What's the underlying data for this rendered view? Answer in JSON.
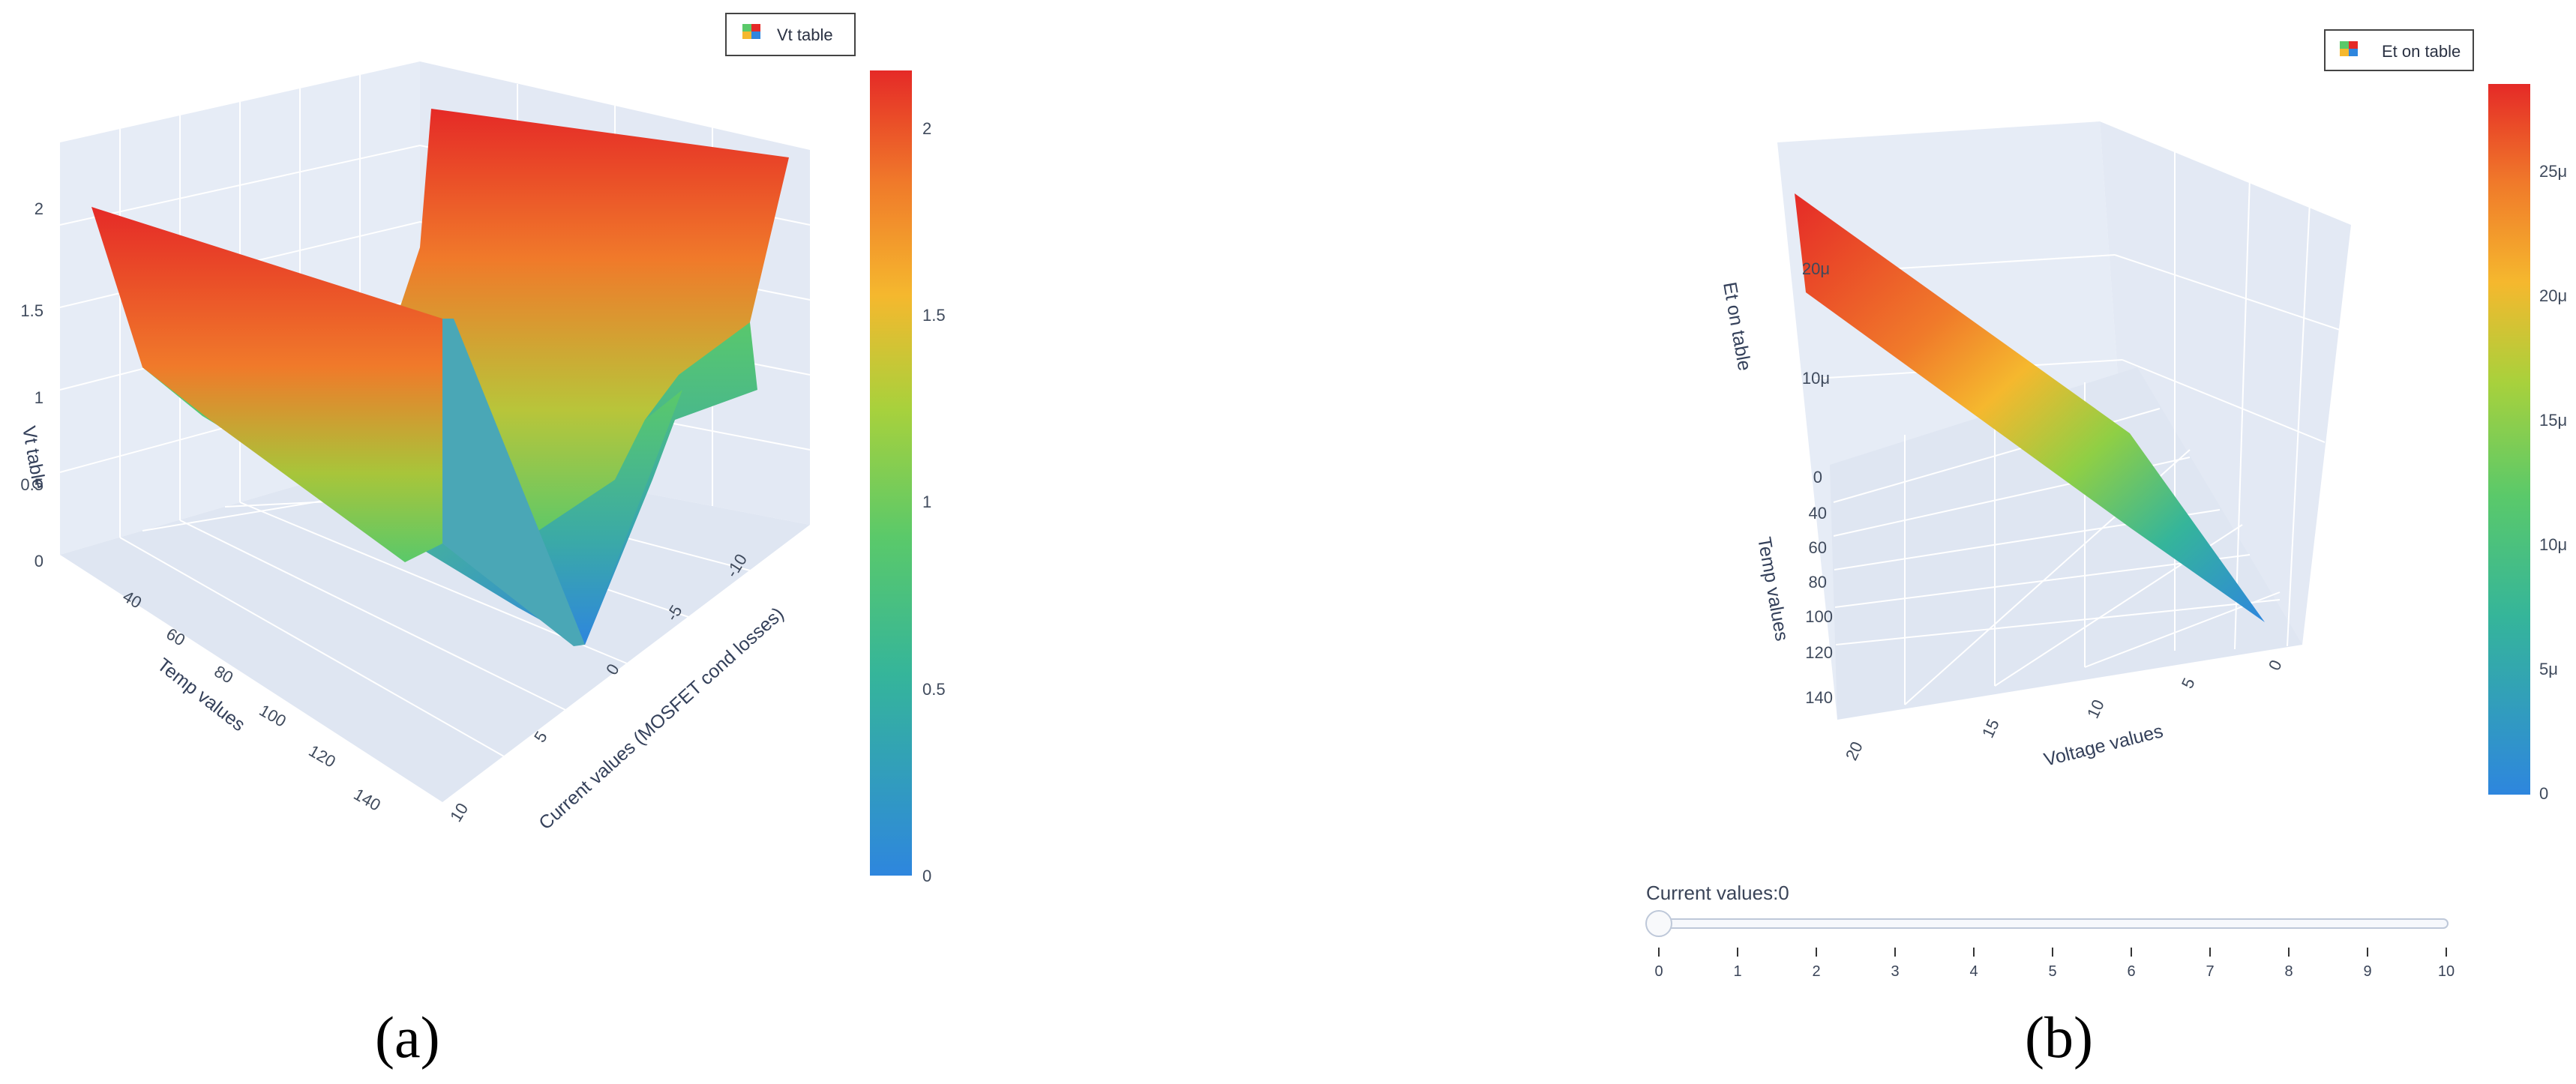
{
  "colors": {
    "low": "#2e86de",
    "mid_low": "#5ac96a",
    "mid": "#a8d13c",
    "mid_high": "#f5b82e",
    "high": "#e52a27",
    "pane": "#e6ecf6",
    "grid": "#ffffff"
  },
  "chart_data": [
    {
      "type": "surface",
      "panel_label": "(a)",
      "legend_entry": "Vt table",
      "z_axis_title": "Vt table",
      "x_axis_title": "Temp values",
      "y_axis_title": "Current values (MOSFET cond losses)",
      "z_ticks": [
        "0",
        "0.5",
        "1",
        "1.5",
        "2"
      ],
      "x_ticks": [
        "40",
        "60",
        "80",
        "100",
        "120",
        "140"
      ],
      "y_ticks": [
        "10",
        "5",
        "0",
        "-5",
        "-10"
      ],
      "colorbar_ticks": [
        "0",
        "0.5",
        "1",
        "1.5",
        "2"
      ],
      "colorbar_range": [
        0,
        2.15
      ],
      "temp": [
        25,
        150
      ],
      "current": [
        -10,
        10
      ],
      "note_values": {
        "z_min": 0,
        "z_max": 2.15
      }
    },
    {
      "type": "surface",
      "panel_label": "(b)",
      "legend_entry": "Et on table",
      "z_axis_title": "Et on table",
      "x_axis_title": "Temp values",
      "y_axis_title": "Voltage values",
      "z_ticks": [
        "0",
        "10μ",
        "20μ"
      ],
      "x_ticks": [
        "40",
        "60",
        "80",
        "100",
        "120",
        "140"
      ],
      "y_ticks": [
        "20",
        "15",
        "10",
        "5",
        "0"
      ],
      "colorbar_ticks": [
        "0",
        "5μ",
        "10μ",
        "15μ",
        "20μ",
        "25μ"
      ],
      "colorbar_range": [
        0,
        2.85e-05
      ],
      "slider": {
        "label": "Current values:0",
        "value": 0,
        "ticks": [
          "0",
          "1",
          "2",
          "3",
          "4",
          "5",
          "6",
          "7",
          "8",
          "9",
          "10"
        ]
      }
    }
  ]
}
